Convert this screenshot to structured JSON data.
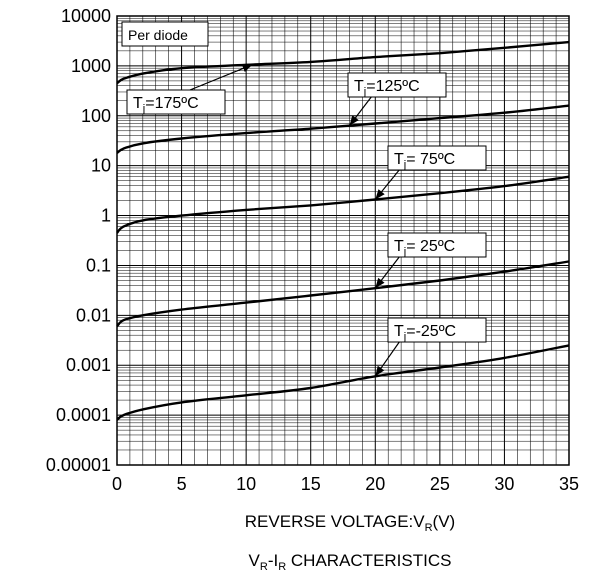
{
  "chart_data": {
    "type": "line",
    "title": "V_R-I_R CHARACTERISTICS",
    "title_parts": {
      "main": "V",
      "sub1": "R",
      "mid": "-I",
      "sub2": "R",
      "rest": " CHARACTERISTICS"
    },
    "xlabel": "REVERSE VOLTAGE:V_R(V)",
    "xlabel_parts": {
      "main": "REVERSE VOLTAGE:V",
      "sub": "R",
      "rest": "(V)"
    },
    "ylabel": "",
    "xlim": [
      0,
      35
    ],
    "ylim": [
      1e-05,
      10000
    ],
    "yscale": "log",
    "grid": true,
    "x_ticks": [
      "0",
      "5",
      "10",
      "15",
      "20",
      "25",
      "30",
      "35"
    ],
    "y_ticks": [
      "10000",
      "1000",
      "100",
      "10",
      "1",
      "0.1",
      "0.01",
      "0.001",
      "0.0001",
      "0.00001"
    ],
    "box_label": "Per diode",
    "series": [
      {
        "name": "Tj=175ºC",
        "label_parts": {
          "pre": "T",
          "sub": "j",
          "post": "=175ºC"
        },
        "x": [
          0,
          0.5,
          2,
          5,
          10,
          15,
          20,
          25,
          30,
          35
        ],
        "y": [
          450,
          550,
          700,
          900,
          1050,
          1200,
          1500,
          1800,
          2300,
          3000
        ]
      },
      {
        "name": "Tj=125ºC",
        "label_parts": {
          "pre": "T",
          "sub": "j",
          "post": "=125ºC"
        },
        "x": [
          0,
          0.5,
          2,
          5,
          10,
          15,
          20,
          25,
          30,
          35
        ],
        "y": [
          18,
          22,
          28,
          35,
          45,
          55,
          70,
          90,
          115,
          160
        ]
      },
      {
        "name": "Tj= 75ºC",
        "label_parts": {
          "pre": "T",
          "sub": "j",
          "post": "= 75ºC"
        },
        "x": [
          0,
          0.5,
          2,
          5,
          10,
          15,
          20,
          25,
          30,
          35
        ],
        "y": [
          0.45,
          0.6,
          0.8,
          1.0,
          1.3,
          1.6,
          2.1,
          2.8,
          3.9,
          6.0
        ]
      },
      {
        "name": "Tj= 25ºC",
        "label_parts": {
          "pre": "T",
          "sub": "j",
          "post": "= 25ºC"
        },
        "x": [
          0,
          0.5,
          2,
          5,
          10,
          15,
          20,
          25,
          30,
          35
        ],
        "y": [
          0.006,
          0.008,
          0.01,
          0.013,
          0.018,
          0.025,
          0.035,
          0.05,
          0.075,
          0.12
        ]
      },
      {
        "name": "Tj=-25ºC",
        "label_parts": {
          "pre": "T",
          "sub": "j",
          "post": "=-25ºC"
        },
        "x": [
          0,
          0.5,
          2,
          5,
          10,
          15,
          20,
          25,
          30,
          35
        ],
        "y": [
          8e-05,
          0.0001,
          0.00013,
          0.00018,
          0.00025,
          0.00035,
          0.0006,
          0.0009,
          0.0014,
          0.0025
        ]
      }
    ]
  }
}
